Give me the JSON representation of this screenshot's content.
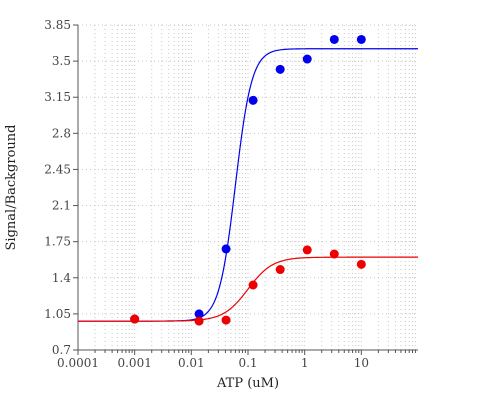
{
  "chart_data": {
    "type": "scatter",
    "xlabel": "ATP (uM)",
    "ylabel": "Signal/Background",
    "x_scale": "log",
    "xlim": [
      0.0001,
      100
    ],
    "ylim": [
      0.7,
      3.85
    ],
    "grid": true,
    "x_ticks": [
      {
        "value": 0.0001,
        "label": "0.0001"
      },
      {
        "value": 0.001,
        "label": "0.001"
      },
      {
        "value": 0.01,
        "label": "0.01"
      },
      {
        "value": 0.1,
        "label": "0.1"
      },
      {
        "value": 1,
        "label": "1"
      },
      {
        "value": 10,
        "label": "10"
      }
    ],
    "y_ticks": [
      {
        "value": 0.7,
        "label": "0.7"
      },
      {
        "value": 1.05,
        "label": "1.05"
      },
      {
        "value": 1.4,
        "label": "1.4"
      },
      {
        "value": 1.75,
        "label": "1.75"
      },
      {
        "value": 2.1,
        "label": "2.1"
      },
      {
        "value": 2.45,
        "label": "2.45"
      },
      {
        "value": 2.8,
        "label": "2.8"
      },
      {
        "value": 3.15,
        "label": "3.15"
      },
      {
        "value": 3.5,
        "label": "3.5"
      },
      {
        "value": 3.85,
        "label": "3.85"
      }
    ],
    "series": [
      {
        "color": "#0000ee",
        "x": [
          0.001,
          0.0137,
          0.041,
          0.123,
          0.37,
          1.11,
          3.33,
          10
        ],
        "y": [
          1.0,
          1.05,
          1.68,
          3.12,
          3.42,
          3.52,
          3.71,
          3.71
        ],
        "fit": {
          "bottom": 0.98,
          "top": 3.62,
          "ec50": 0.06,
          "hill": 3.0
        }
      },
      {
        "color": "#ee0000",
        "x": [
          0.001,
          0.0137,
          0.041,
          0.123,
          0.37,
          1.11,
          3.33,
          10
        ],
        "y": [
          1.0,
          0.98,
          0.99,
          1.33,
          1.48,
          1.67,
          1.63,
          1.53
        ],
        "fit": {
          "bottom": 0.98,
          "top": 1.6,
          "ec50": 0.1,
          "hill": 2.0
        }
      }
    ]
  }
}
